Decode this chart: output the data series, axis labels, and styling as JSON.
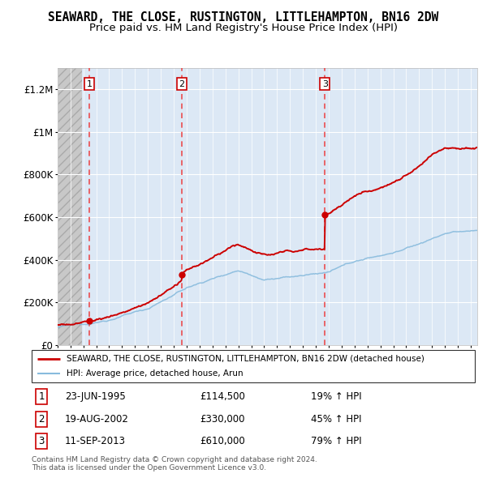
{
  "title": "SEAWARD, THE CLOSE, RUSTINGTON, LITTLEHAMPTON, BN16 2DW",
  "subtitle": "Price paid vs. HM Land Registry's House Price Index (HPI)",
  "title_fontsize": 10.5,
  "subtitle_fontsize": 9.5,
  "ylabel_ticks": [
    "£0",
    "£200K",
    "£400K",
    "£600K",
    "£800K",
    "£1M",
    "£1.2M"
  ],
  "ytick_vals": [
    0,
    200000,
    400000,
    600000,
    800000,
    1000000,
    1200000
  ],
  "ylim": [
    0,
    1300000
  ],
  "xlim_start": 1993.0,
  "xlim_end": 2025.5,
  "purchases": [
    {
      "num": 1,
      "date": "23-JUN-1995",
      "year": 1995.47,
      "price": 114500,
      "pct": "19%",
      "dir": "↑"
    },
    {
      "num": 2,
      "date": "19-AUG-2002",
      "year": 2002.63,
      "price": 330000,
      "pct": "45%",
      "dir": "↑"
    },
    {
      "num": 3,
      "date": "11-SEP-2013",
      "year": 2013.7,
      "price": 610000,
      "pct": "79%",
      "dir": "↑"
    }
  ],
  "legend_line1": "SEAWARD, THE CLOSE, RUSTINGTON, LITTLEHAMPTON, BN16 2DW (detached house)",
  "legend_line2": "HPI: Average price, detached house, Arun",
  "footer1": "Contains HM Land Registry data © Crown copyright and database right 2024.",
  "footer2": "This data is licensed under the Open Government Licence v3.0.",
  "red_color": "#cc0000",
  "blue_color": "#88bbdd",
  "plot_bg_color": "#dce8f5",
  "hatch_color": "#c8c8c8",
  "grid_color": "#ffffff",
  "vline_color": "#ee3333"
}
